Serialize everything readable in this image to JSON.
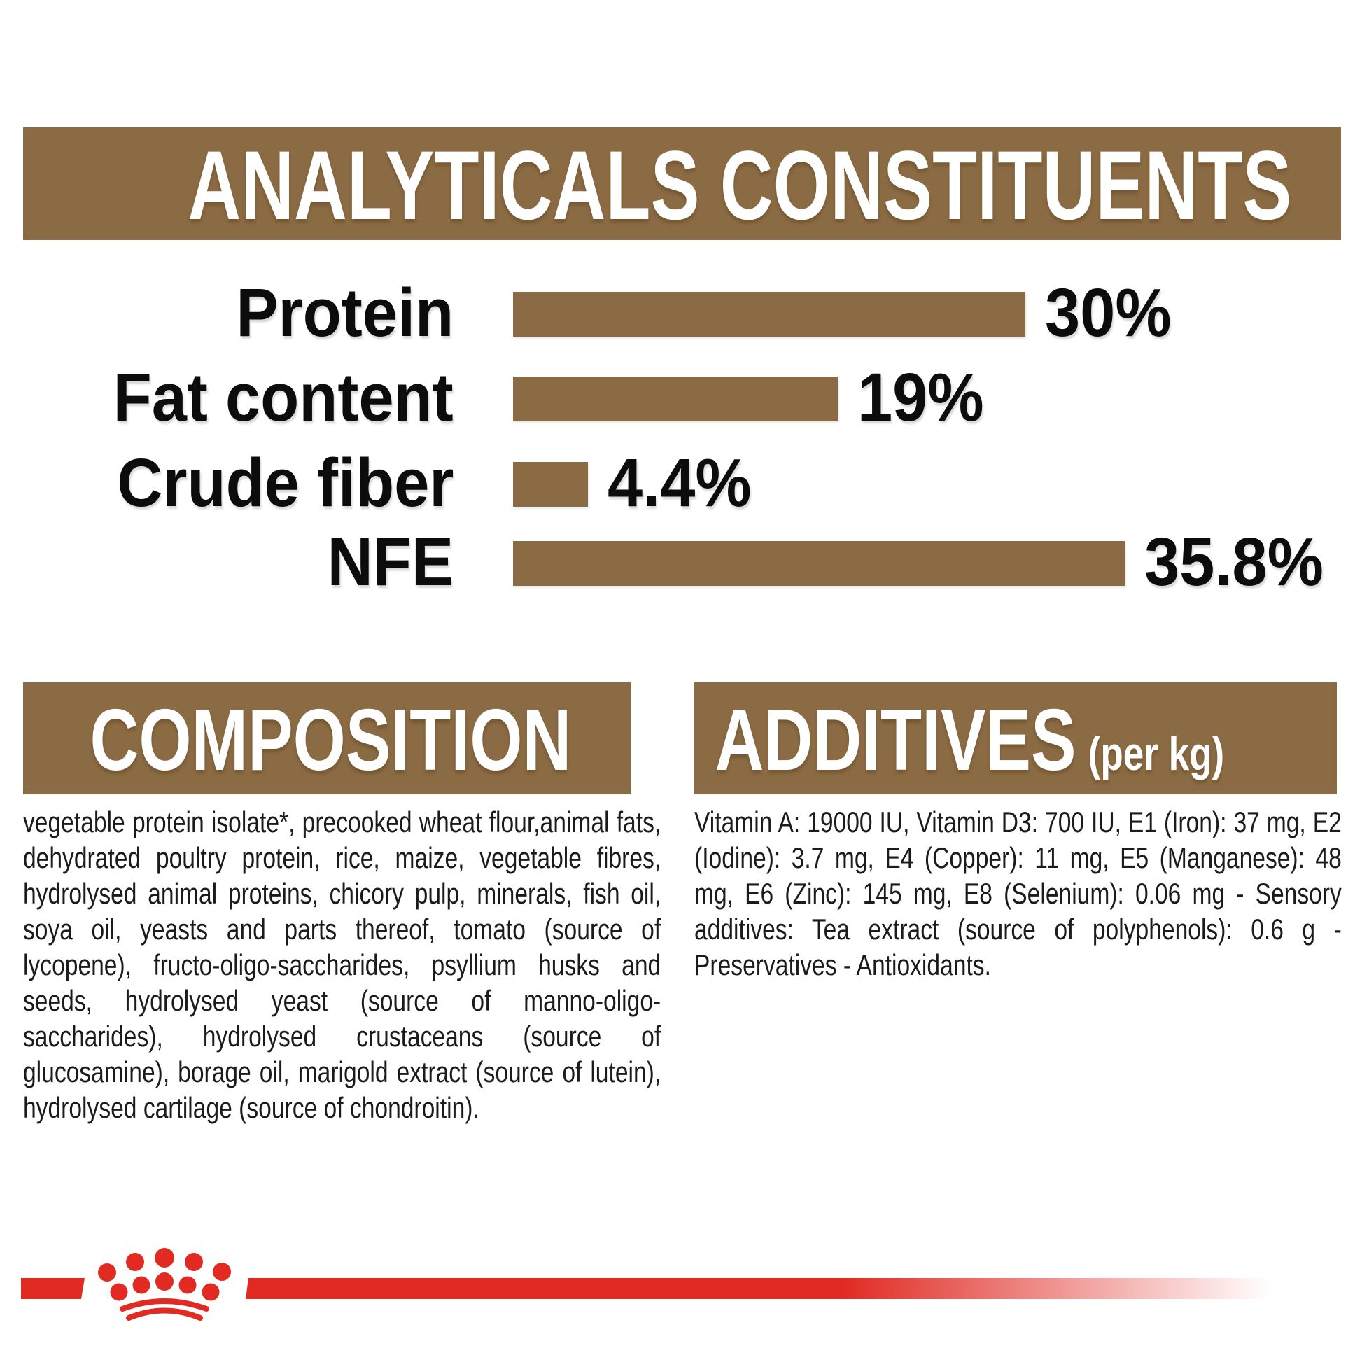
{
  "colors": {
    "brown": "#8b6b43",
    "red": "#e02a22",
    "text_dark": "#1b1b1b",
    "white": "#ffffff"
  },
  "analyticals": {
    "title": "ANALYTICALS CONSTITUENTS"
  },
  "chart_data": {
    "type": "bar",
    "orientation": "horizontal",
    "title": "ANALYTICALS CONSTITUENTS",
    "categories": [
      "Protein",
      "Fat content",
      "Crude fiber",
      "NFE"
    ],
    "values": [
      30,
      19,
      4.4,
      35.8
    ],
    "value_labels": [
      "30%",
      "19%",
      "4.4%",
      "35.8%"
    ],
    "unit": "%",
    "xlim": [
      0,
      40
    ],
    "grid": false,
    "legend": "none",
    "bar_color": "#8b6b43"
  },
  "composition": {
    "title": "COMPOSITION",
    "body": "vegetable protein isolate*, precooked wheat flour,animal fats, dehydrated poultry protein, rice, maize, vegetable fibres, hydrolysed animal proteins, chicory pulp, minerals, fish oil, soya oil, yeasts and parts thereof, tomato (source of lycopene), fructo-oligo-saccharides, psyllium husks and seeds, hydrolysed yeast (source of manno-oligo-saccharides), hydrolysed crustaceans (source of glucosamine), borage oil, marigold extract (source of lutein), hydrolysed cartilage (source of chondroitin)."
  },
  "additives": {
    "title": "ADDITIVES",
    "subtitle": "(per kg)",
    "body": "Vitamin A: 19000 IU, Vitamin D3: 700 IU, E1 (Iron): 37 mg, E2 (Iodine): 3.7 mg, E4 (Copper): 11 mg, E5 (Manganese): 48 mg, E6 (Zinc): 145 mg, E8 (Selenium): 0.06 mg - Sensory additives: Tea extract (source of polyphenols): 0.6 g - Preservatives - Antioxidants."
  },
  "footer": {
    "logo": "royal-canin-crown-logo"
  }
}
